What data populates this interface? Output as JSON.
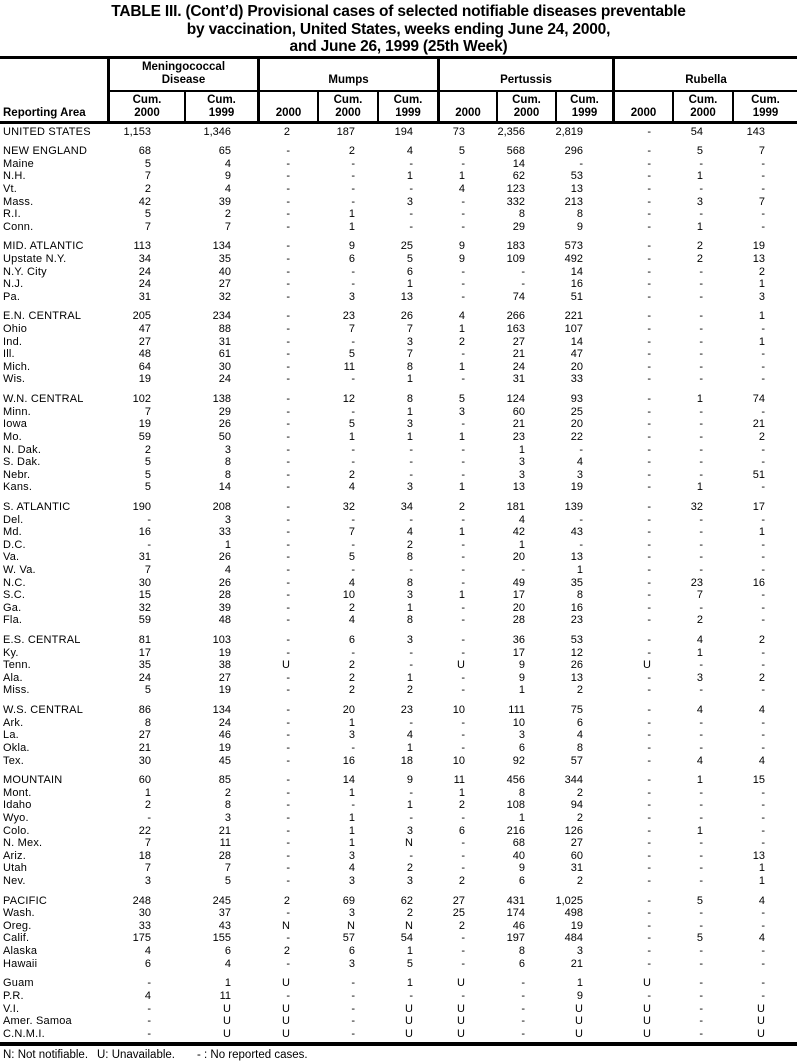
{
  "title": {
    "line1": "TABLE III. (Cont’d) Provisional cases of selected notifiable diseases preventable",
    "line2": "by vaccination, United States, weeks ending June 24, 2000,",
    "line3": "and June 26, 1999 (25th Week)"
  },
  "header": {
    "reporting_area": "Reporting Area",
    "groups": [
      {
        "label": "Meningococcal\nDisease",
        "columns": [
          "Cum.\n2000",
          "Cum.\n1999"
        ]
      },
      {
        "label": "Mumps",
        "columns": [
          "2000",
          "Cum.\n2000",
          "Cum.\n1999"
        ]
      },
      {
        "label": "Pertussis",
        "columns": [
          "2000",
          "Cum.\n2000",
          "Cum.\n1999"
        ]
      },
      {
        "label": "Rubella",
        "columns": [
          "2000",
          "Cum.\n2000",
          "Cum.\n1999"
        ]
      }
    ]
  },
  "sections": [
    {
      "rows": [
        {
          "area": "UNITED STATES",
          "values": [
            "1,153",
            "1,346",
            "2",
            "187",
            "194",
            "73",
            "2,356",
            "2,819",
            "-",
            "54",
            "143"
          ]
        }
      ]
    },
    {
      "rows": [
        {
          "area": "NEW ENGLAND",
          "values": [
            "68",
            "65",
            "-",
            "2",
            "4",
            "5",
            "568",
            "296",
            "-",
            "5",
            "7"
          ]
        },
        {
          "area": "Maine",
          "values": [
            "5",
            "4",
            "-",
            "-",
            "-",
            "-",
            "14",
            "-",
            "-",
            "-",
            "-"
          ]
        },
        {
          "area": "N.H.",
          "values": [
            "7",
            "9",
            "-",
            "-",
            "1",
            "1",
            "62",
            "53",
            "-",
            "1",
            "-"
          ]
        },
        {
          "area": "Vt.",
          "values": [
            "2",
            "4",
            "-",
            "-",
            "-",
            "4",
            "123",
            "13",
            "-",
            "-",
            "-"
          ]
        },
        {
          "area": "Mass.",
          "values": [
            "42",
            "39",
            "-",
            "-",
            "3",
            "-",
            "332",
            "213",
            "-",
            "3",
            "7"
          ]
        },
        {
          "area": "R.I.",
          "values": [
            "5",
            "2",
            "-",
            "1",
            "-",
            "-",
            "8",
            "8",
            "-",
            "-",
            "-"
          ]
        },
        {
          "area": "Conn.",
          "values": [
            "7",
            "7",
            "-",
            "1",
            "-",
            "-",
            "29",
            "9",
            "-",
            "1",
            "-"
          ]
        }
      ]
    },
    {
      "rows": [
        {
          "area": "MID. ATLANTIC",
          "values": [
            "113",
            "134",
            "-",
            "9",
            "25",
            "9",
            "183",
            "573",
            "-",
            "2",
            "19"
          ]
        },
        {
          "area": "Upstate N.Y.",
          "values": [
            "34",
            "35",
            "-",
            "6",
            "5",
            "9",
            "109",
            "492",
            "-",
            "2",
            "13"
          ]
        },
        {
          "area": "N.Y. City",
          "values": [
            "24",
            "40",
            "-",
            "-",
            "6",
            "-",
            "-",
            "14",
            "-",
            "-",
            "2"
          ]
        },
        {
          "area": "N.J.",
          "values": [
            "24",
            "27",
            "-",
            "-",
            "1",
            "-",
            "-",
            "16",
            "-",
            "-",
            "1"
          ]
        },
        {
          "area": "Pa.",
          "values": [
            "31",
            "32",
            "-",
            "3",
            "13",
            "-",
            "74",
            "51",
            "-",
            "-",
            "3"
          ]
        }
      ]
    },
    {
      "rows": [
        {
          "area": "E.N. CENTRAL",
          "values": [
            "205",
            "234",
            "-",
            "23",
            "26",
            "4",
            "266",
            "221",
            "-",
            "-",
            "1"
          ]
        },
        {
          "area": "Ohio",
          "values": [
            "47",
            "88",
            "-",
            "7",
            "7",
            "1",
            "163",
            "107",
            "-",
            "-",
            "-"
          ]
        },
        {
          "area": "Ind.",
          "values": [
            "27",
            "31",
            "-",
            "-",
            "3",
            "2",
            "27",
            "14",
            "-",
            "-",
            "1"
          ]
        },
        {
          "area": "Ill.",
          "values": [
            "48",
            "61",
            "-",
            "5",
            "7",
            "-",
            "21",
            "47",
            "-",
            "-",
            "-"
          ]
        },
        {
          "area": "Mich.",
          "values": [
            "64",
            "30",
            "-",
            "11",
            "8",
            "1",
            "24",
            "20",
            "-",
            "-",
            "-"
          ]
        },
        {
          "area": "Wis.",
          "values": [
            "19",
            "24",
            "-",
            "-",
            "1",
            "-",
            "31",
            "33",
            "-",
            "-",
            "-"
          ]
        }
      ]
    },
    {
      "rows": [
        {
          "area": "W.N. CENTRAL",
          "values": [
            "102",
            "138",
            "-",
            "12",
            "8",
            "5",
            "124",
            "93",
            "-",
            "1",
            "74"
          ]
        },
        {
          "area": "Minn.",
          "values": [
            "7",
            "29",
            "-",
            "-",
            "1",
            "3",
            "60",
            "25",
            "-",
            "-",
            "-"
          ]
        },
        {
          "area": "Iowa",
          "values": [
            "19",
            "26",
            "-",
            "5",
            "3",
            "-",
            "21",
            "20",
            "-",
            "-",
            "21"
          ]
        },
        {
          "area": "Mo.",
          "values": [
            "59",
            "50",
            "-",
            "1",
            "1",
            "1",
            "23",
            "22",
            "-",
            "-",
            "2"
          ]
        },
        {
          "area": "N. Dak.",
          "values": [
            "2",
            "3",
            "-",
            "-",
            "-",
            "-",
            "1",
            "-",
            "-",
            "-",
            "-"
          ]
        },
        {
          "area": "S. Dak.",
          "values": [
            "5",
            "8",
            "-",
            "-",
            "-",
            "-",
            "3",
            "4",
            "-",
            "-",
            "-"
          ]
        },
        {
          "area": "Nebr.",
          "values": [
            "5",
            "8",
            "-",
            "2",
            "-",
            "-",
            "3",
            "3",
            "-",
            "-",
            "51"
          ]
        },
        {
          "area": "Kans.",
          "values": [
            "5",
            "14",
            "-",
            "4",
            "3",
            "1",
            "13",
            "19",
            "-",
            "1",
            "-"
          ]
        }
      ]
    },
    {
      "rows": [
        {
          "area": "S. ATLANTIC",
          "values": [
            "190",
            "208",
            "-",
            "32",
            "34",
            "2",
            "181",
            "139",
            "-",
            "32",
            "17"
          ]
        },
        {
          "area": "Del.",
          "values": [
            "-",
            "3",
            "-",
            "-",
            "-",
            "-",
            "4",
            "-",
            "-",
            "-",
            "-"
          ]
        },
        {
          "area": "Md.",
          "values": [
            "16",
            "33",
            "-",
            "7",
            "4",
            "1",
            "42",
            "43",
            "-",
            "-",
            "1"
          ]
        },
        {
          "area": "D.C.",
          "values": [
            "-",
            "1",
            "-",
            "-",
            "2",
            "-",
            "1",
            "-",
            "-",
            "-",
            "-"
          ]
        },
        {
          "area": "Va.",
          "values": [
            "31",
            "26",
            "-",
            "5",
            "8",
            "-",
            "20",
            "13",
            "-",
            "-",
            "-"
          ]
        },
        {
          "area": "W. Va.",
          "values": [
            "7",
            "4",
            "-",
            "-",
            "-",
            "-",
            "-",
            "1",
            "-",
            "-",
            "-"
          ]
        },
        {
          "area": "N.C.",
          "values": [
            "30",
            "26",
            "-",
            "4",
            "8",
            "-",
            "49",
            "35",
            "-",
            "23",
            "16"
          ]
        },
        {
          "area": "S.C.",
          "values": [
            "15",
            "28",
            "-",
            "10",
            "3",
            "1",
            "17",
            "8",
            "-",
            "7",
            "-"
          ]
        },
        {
          "area": "Ga.",
          "values": [
            "32",
            "39",
            "-",
            "2",
            "1",
            "-",
            "20",
            "16",
            "-",
            "-",
            "-"
          ]
        },
        {
          "area": "Fla.",
          "values": [
            "59",
            "48",
            "-",
            "4",
            "8",
            "-",
            "28",
            "23",
            "-",
            "2",
            "-"
          ]
        }
      ]
    },
    {
      "rows": [
        {
          "area": "E.S. CENTRAL",
          "values": [
            "81",
            "103",
            "-",
            "6",
            "3",
            "-",
            "36",
            "53",
            "-",
            "4",
            "2"
          ]
        },
        {
          "area": "Ky.",
          "values": [
            "17",
            "19",
            "-",
            "-",
            "-",
            "-",
            "17",
            "12",
            "-",
            "1",
            "-"
          ]
        },
        {
          "area": "Tenn.",
          "values": [
            "35",
            "38",
            "U",
            "2",
            "-",
            "U",
            "9",
            "26",
            "U",
            "-",
            "-"
          ]
        },
        {
          "area": "Ala.",
          "values": [
            "24",
            "27",
            "-",
            "2",
            "1",
            "-",
            "9",
            "13",
            "-",
            "3",
            "2"
          ]
        },
        {
          "area": "Miss.",
          "values": [
            "5",
            "19",
            "-",
            "2",
            "2",
            "-",
            "1",
            "2",
            "-",
            "-",
            "-"
          ]
        }
      ]
    },
    {
      "rows": [
        {
          "area": "W.S. CENTRAL",
          "values": [
            "86",
            "134",
            "-",
            "20",
            "23",
            "10",
            "111",
            "75",
            "-",
            "4",
            "4"
          ]
        },
        {
          "area": "Ark.",
          "values": [
            "8",
            "24",
            "-",
            "1",
            "-",
            "-",
            "10",
            "6",
            "-",
            "-",
            "-"
          ]
        },
        {
          "area": "La.",
          "values": [
            "27",
            "46",
            "-",
            "3",
            "4",
            "-",
            "3",
            "4",
            "-",
            "-",
            "-"
          ]
        },
        {
          "area": "Okla.",
          "values": [
            "21",
            "19",
            "-",
            "-",
            "1",
            "-",
            "6",
            "8",
            "-",
            "-",
            "-"
          ]
        },
        {
          "area": "Tex.",
          "values": [
            "30",
            "45",
            "-",
            "16",
            "18",
            "10",
            "92",
            "57",
            "-",
            "4",
            "4"
          ]
        }
      ]
    },
    {
      "rows": [
        {
          "area": "MOUNTAIN",
          "values": [
            "60",
            "85",
            "-",
            "14",
            "9",
            "11",
            "456",
            "344",
            "-",
            "1",
            "15"
          ]
        },
        {
          "area": "Mont.",
          "values": [
            "1",
            "2",
            "-",
            "1",
            "-",
            "1",
            "8",
            "2",
            "-",
            "-",
            "-"
          ]
        },
        {
          "area": "Idaho",
          "values": [
            "2",
            "8",
            "-",
            "-",
            "1",
            "2",
            "108",
            "94",
            "-",
            "-",
            "-"
          ]
        },
        {
          "area": "Wyo.",
          "values": [
            "-",
            "3",
            "-",
            "1",
            "-",
            "-",
            "1",
            "2",
            "-",
            "-",
            "-"
          ]
        },
        {
          "area": "Colo.",
          "values": [
            "22",
            "21",
            "-",
            "1",
            "3",
            "6",
            "216",
            "126",
            "-",
            "1",
            "-"
          ]
        },
        {
          "area": "N. Mex.",
          "values": [
            "7",
            "11",
            "-",
            "1",
            "N",
            "-",
            "68",
            "27",
            "-",
            "-",
            "-"
          ]
        },
        {
          "area": "Ariz.",
          "values": [
            "18",
            "28",
            "-",
            "3",
            "-",
            "-",
            "40",
            "60",
            "-",
            "-",
            "13"
          ]
        },
        {
          "area": "Utah",
          "values": [
            "7",
            "7",
            "-",
            "4",
            "2",
            "-",
            "9",
            "31",
            "-",
            "-",
            "1"
          ]
        },
        {
          "area": "Nev.",
          "values": [
            "3",
            "5",
            "-",
            "3",
            "3",
            "2",
            "6",
            "2",
            "-",
            "-",
            "1"
          ]
        }
      ]
    },
    {
      "rows": [
        {
          "area": "PACIFIC",
          "values": [
            "248",
            "245",
            "2",
            "69",
            "62",
            "27",
            "431",
            "1,025",
            "-",
            "5",
            "4"
          ]
        },
        {
          "area": "Wash.",
          "values": [
            "30",
            "37",
            "-",
            "3",
            "2",
            "25",
            "174",
            "498",
            "-",
            "-",
            "-"
          ]
        },
        {
          "area": "Oreg.",
          "values": [
            "33",
            "43",
            "N",
            "N",
            "N",
            "2",
            "46",
            "19",
            "-",
            "-",
            "-"
          ]
        },
        {
          "area": "Calif.",
          "values": [
            "175",
            "155",
            "-",
            "57",
            "54",
            "-",
            "197",
            "484",
            "-",
            "5",
            "4"
          ]
        },
        {
          "area": "Alaska",
          "values": [
            "4",
            "6",
            "2",
            "6",
            "1",
            "-",
            "8",
            "3",
            "-",
            "-",
            "-"
          ]
        },
        {
          "area": "Hawaii",
          "values": [
            "6",
            "4",
            "-",
            "3",
            "5",
            "-",
            "6",
            "21",
            "-",
            "-",
            "-"
          ]
        }
      ]
    },
    {
      "rows": [
        {
          "area": "Guam",
          "values": [
            "-",
            "1",
            "U",
            "-",
            "1",
            "U",
            "-",
            "1",
            "U",
            "-",
            "-"
          ]
        },
        {
          "area": "P.R.",
          "values": [
            "4",
            "11",
            "-",
            "-",
            "-",
            "-",
            "-",
            "9",
            "-",
            "-",
            "-"
          ]
        },
        {
          "area": "V.I.",
          "values": [
            "-",
            "U",
            "U",
            "-",
            "U",
            "U",
            "-",
            "U",
            "U",
            "-",
            "U"
          ]
        },
        {
          "area": "Amer. Samoa",
          "values": [
            "-",
            "U",
            "U",
            "-",
            "U",
            "U",
            "-",
            "U",
            "U",
            "-",
            "U"
          ]
        },
        {
          "area": "C.N.M.I.",
          "values": [
            "-",
            "U",
            "U",
            "-",
            "U",
            "U",
            "-",
            "U",
            "U",
            "-",
            "U"
          ]
        }
      ]
    }
  ],
  "footnotes": [
    "N: Not notifiable.",
    "U: Unavailable.",
    "- : No reported cases."
  ]
}
